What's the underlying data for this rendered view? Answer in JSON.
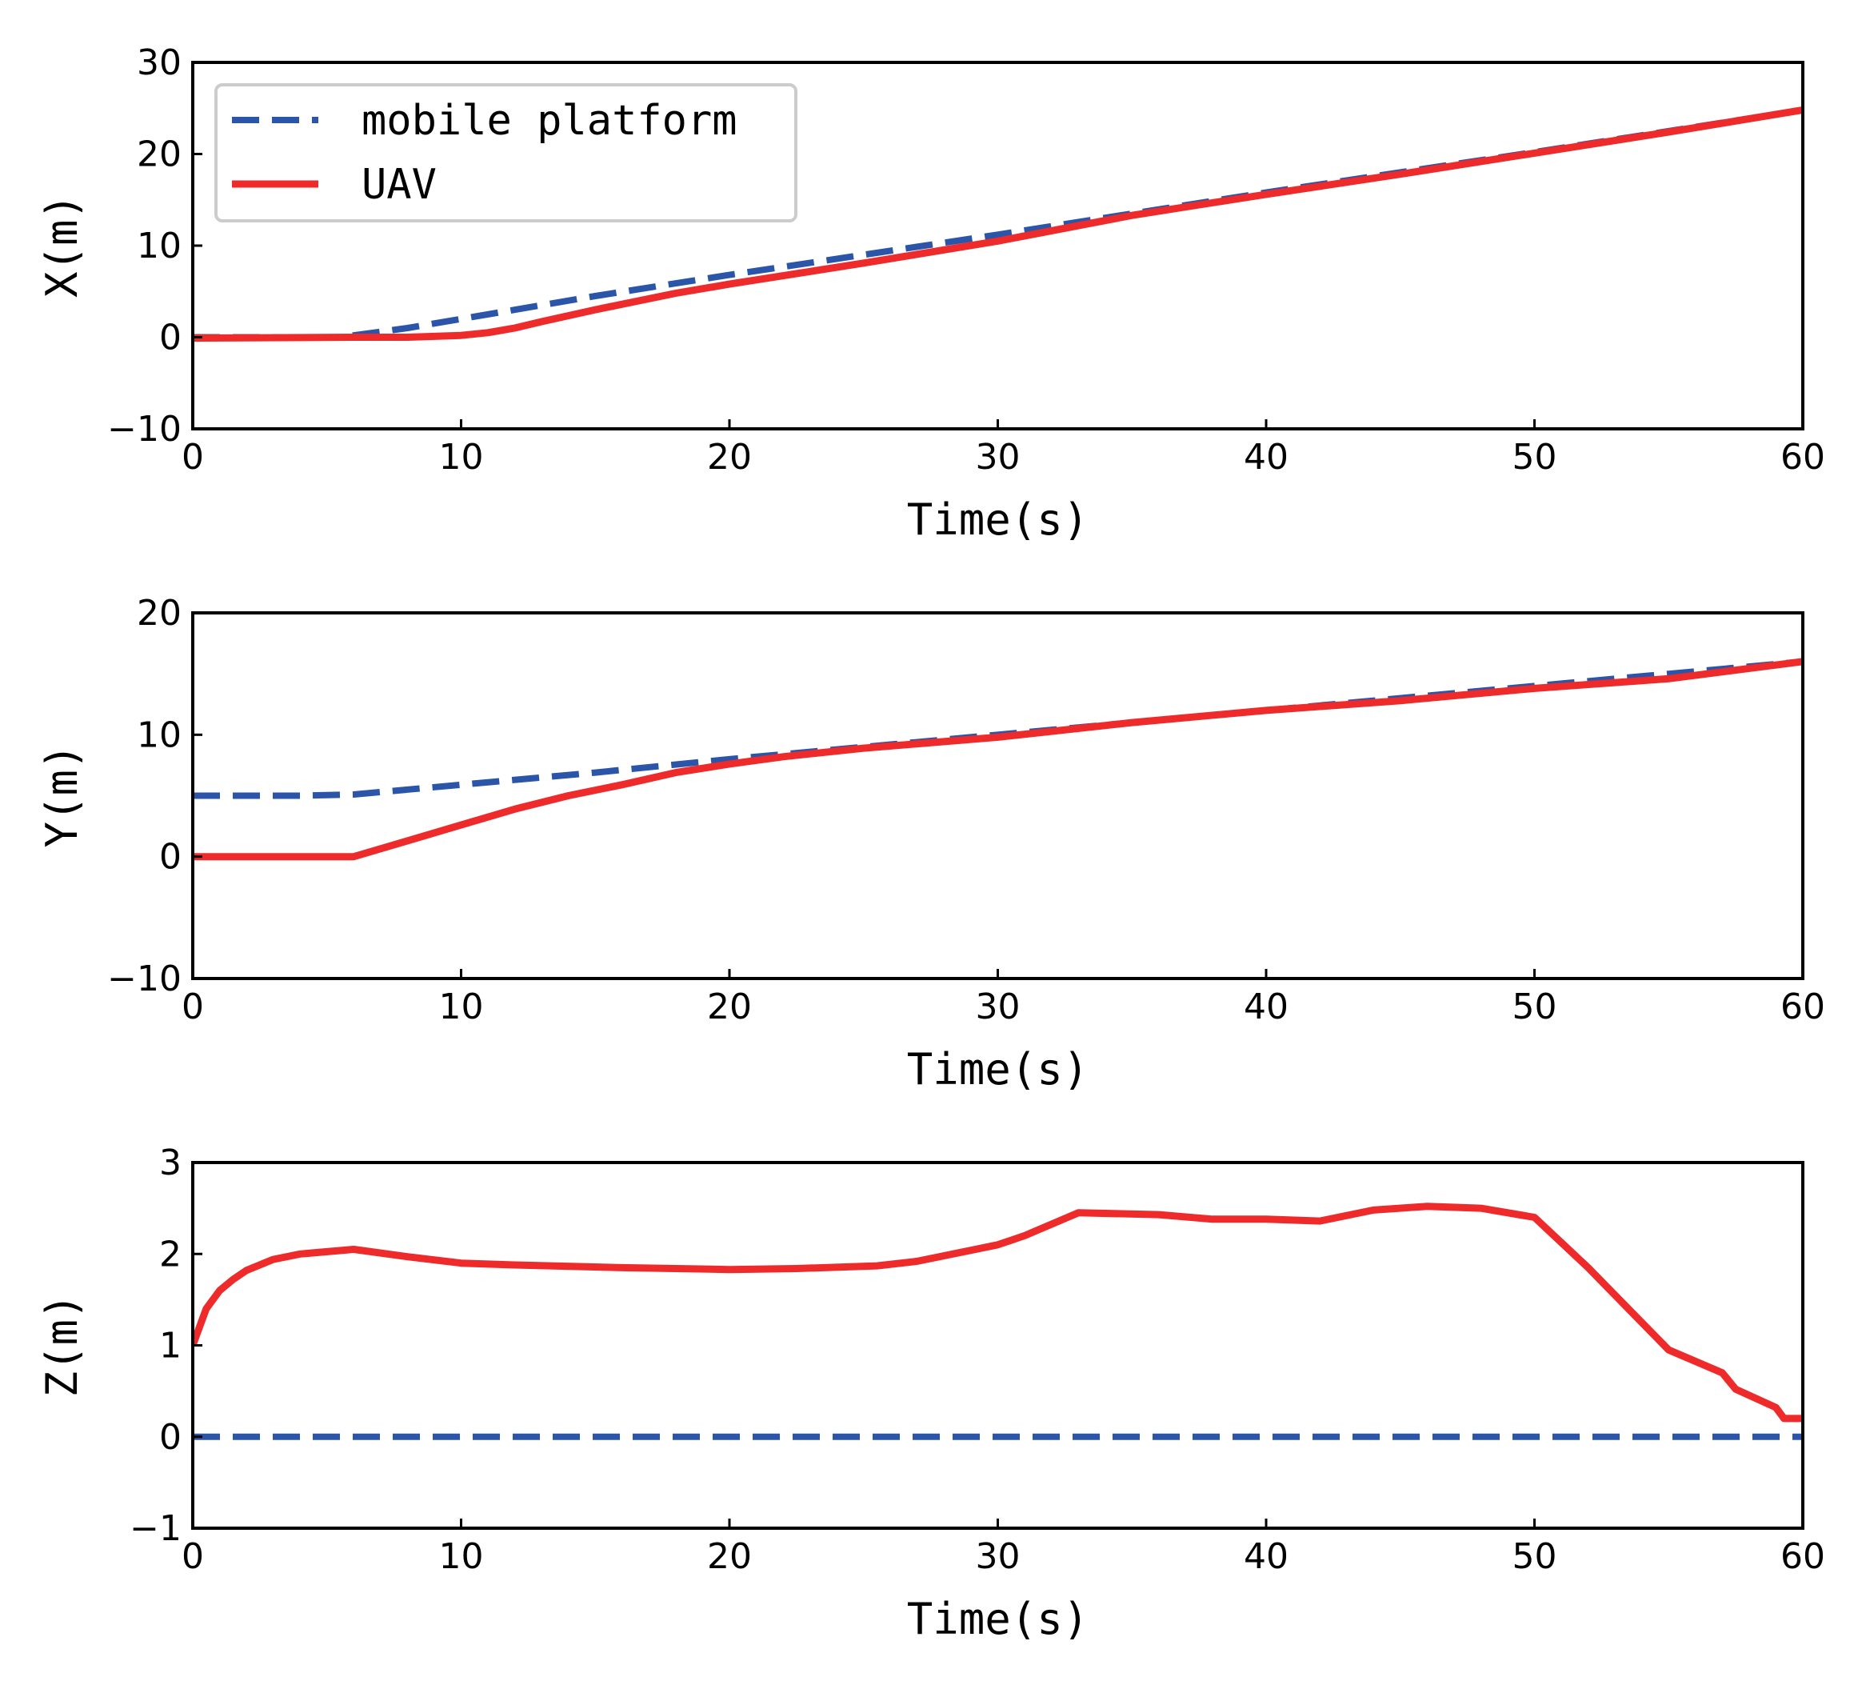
{
  "colors": {
    "mobile_platform": "#2a55a8",
    "uav": "#ee2a2a",
    "axes": "#000000",
    "legend_edge": "#cccccc"
  },
  "legend": {
    "entries": [
      {
        "label": "mobile platform",
        "style": "dashed",
        "color": "#2a55a8"
      },
      {
        "label": "UAV",
        "style": "solid",
        "color": "#ee2a2a"
      }
    ],
    "location": "upper-left"
  },
  "chart_data": [
    {
      "type": "line",
      "title": "",
      "xlabel": "Time(s)",
      "ylabel": "X(m)",
      "xlim": [
        0,
        60
      ],
      "ylim": [
        -10,
        30
      ],
      "xticks": [
        "0",
        "10",
        "20",
        "30",
        "40",
        "50",
        "60"
      ],
      "yticks": [
        "−10",
        "0",
        "10",
        "20",
        "30"
      ],
      "xtick_values": [
        0,
        10,
        20,
        30,
        40,
        50,
        60
      ],
      "ytick_values": [
        -10,
        0,
        10,
        20,
        30
      ],
      "legend": true,
      "series": [
        {
          "name": "mobile platform",
          "style": "dashed",
          "x": [
            0,
            5.5,
            8,
            10,
            15,
            20,
            30,
            40,
            50,
            60
          ],
          "y": [
            0,
            0,
            1,
            2,
            4.5,
            6.8,
            11.2,
            15.8,
            20.2,
            24.8
          ]
        },
        {
          "name": "UAV",
          "style": "solid",
          "x": [
            0,
            6,
            8,
            10,
            11,
            12,
            13,
            15,
            18,
            20,
            25,
            30,
            35,
            40,
            45,
            50,
            55,
            60
          ],
          "y": [
            -0.1,
            0,
            0,
            0.2,
            0.5,
            1,
            1.7,
            3,
            4.8,
            5.8,
            8.1,
            10.5,
            13.3,
            15.6,
            17.8,
            20.1,
            22.4,
            24.8
          ]
        }
      ]
    },
    {
      "type": "line",
      "title": "",
      "xlabel": "Time(s)",
      "ylabel": "Y(m)",
      "xlim": [
        0,
        60
      ],
      "ylim": [
        -10,
        20
      ],
      "xticks": [
        "0",
        "10",
        "20",
        "30",
        "40",
        "50",
        "60"
      ],
      "yticks": [
        "−10",
        "0",
        "10",
        "20"
      ],
      "xtick_values": [
        0,
        10,
        20,
        30,
        40,
        50,
        60
      ],
      "ytick_values": [
        -10,
        0,
        10,
        20
      ],
      "legend": false,
      "series": [
        {
          "name": "mobile platform",
          "style": "dashed",
          "x": [
            0,
            4,
            6,
            10,
            15,
            20,
            25,
            30,
            35,
            40,
            45,
            50,
            55,
            60
          ],
          "y": [
            5,
            5,
            5.1,
            5.9,
            6.9,
            8.0,
            9.0,
            10.0,
            11.0,
            12.0,
            13.0,
            14.0,
            15.0,
            16.0
          ]
        },
        {
          "name": "UAV",
          "style": "solid",
          "x": [
            0,
            6,
            8,
            10,
            12,
            14,
            16,
            18,
            20,
            22,
            25,
            30,
            35,
            40,
            45,
            50,
            55,
            60
          ],
          "y": [
            0,
            0,
            1.3,
            2.6,
            3.9,
            5.0,
            5.9,
            6.9,
            7.6,
            8.2,
            8.9,
            9.8,
            11.0,
            12.0,
            12.8,
            13.8,
            14.6,
            16.0
          ]
        }
      ]
    },
    {
      "type": "line",
      "title": "",
      "xlabel": "Time(s)",
      "ylabel": "Z(m)",
      "xlim": [
        0,
        60
      ],
      "ylim": [
        -1,
        3
      ],
      "xticks": [
        "0",
        "10",
        "20",
        "30",
        "40",
        "50",
        "60"
      ],
      "yticks": [
        "−1",
        "0",
        "1",
        "2",
        "3"
      ],
      "xtick_values": [
        0,
        10,
        20,
        30,
        40,
        50,
        60
      ],
      "ytick_values": [
        -1,
        0,
        1,
        2,
        3
      ],
      "legend": false,
      "series": [
        {
          "name": "mobile platform",
          "style": "dashed",
          "x": [
            0,
            60
          ],
          "y": [
            0,
            0
          ]
        },
        {
          "name": "UAV",
          "style": "solid",
          "x": [
            0,
            0.5,
            1,
            1.5,
            2,
            3,
            4,
            6,
            8,
            10,
            12,
            16,
            18,
            20,
            22.5,
            25.5,
            27,
            30,
            31,
            33,
            36,
            38,
            40,
            42,
            44,
            46,
            48,
            50,
            52,
            55,
            57,
            57.5,
            59,
            59.3,
            60
          ],
          "y": [
            1.0,
            1.4,
            1.6,
            1.72,
            1.82,
            1.94,
            2.0,
            2.05,
            1.97,
            1.9,
            1.88,
            1.85,
            1.84,
            1.83,
            1.84,
            1.87,
            1.92,
            2.1,
            2.2,
            2.45,
            2.43,
            2.38,
            2.38,
            2.36,
            2.48,
            2.52,
            2.5,
            2.4,
            1.85,
            0.95,
            0.7,
            0.52,
            0.32,
            0.2,
            0.2
          ]
        }
      ]
    }
  ]
}
